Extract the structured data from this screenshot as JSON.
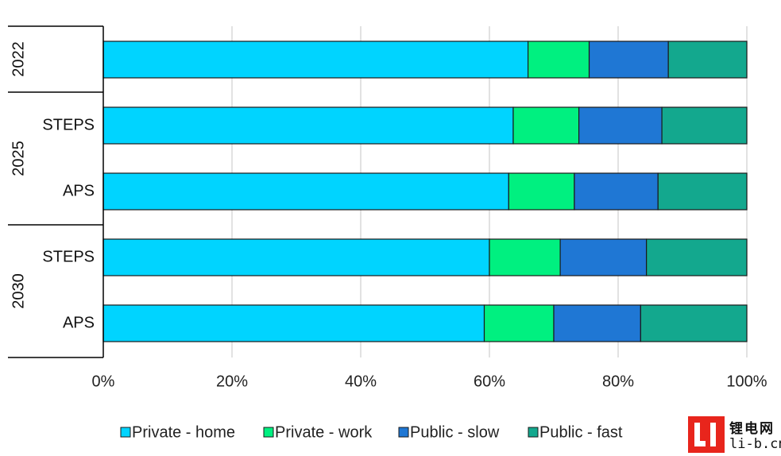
{
  "chart_data": {
    "type": "bar",
    "orientation": "horizontal",
    "stacked": true,
    "groups": [
      {
        "label": "2022",
        "rows": [
          ""
        ]
      },
      {
        "label": "2025",
        "rows": [
          "STEPS",
          "APS"
        ]
      },
      {
        "label": "2030",
        "rows": [
          "STEPS",
          "APS"
        ]
      }
    ],
    "rows": [
      {
        "group": "2022",
        "label": ""
      },
      {
        "group": "2025",
        "label": "STEPS"
      },
      {
        "group": "2025",
        "label": "APS"
      },
      {
        "group": "2030",
        "label": "STEPS"
      },
      {
        "group": "2030",
        "label": "APS"
      }
    ],
    "series": [
      {
        "name": "Private - home",
        "color": "#00d4ff",
        "values": [
          66.0,
          63.7,
          63.0,
          60.0,
          59.2
        ]
      },
      {
        "name": "Private - work",
        "color": "#00f080",
        "values": [
          9.5,
          10.2,
          10.2,
          11.0,
          10.8
        ]
      },
      {
        "name": "Public - slow",
        "color": "#1f77d4",
        "values": [
          12.3,
          12.9,
          13.0,
          13.4,
          13.5
        ]
      },
      {
        "name": "Public - fast",
        "color": "#13a88e",
        "values": [
          12.2,
          13.2,
          13.8,
          15.6,
          16.5
        ]
      }
    ],
    "x_ticks": [
      "0%",
      "20%",
      "40%",
      "60%",
      "80%",
      "100%"
    ],
    "xlim": [
      0,
      100
    ],
    "grid": true,
    "legend_position": "bottom"
  },
  "logo": {
    "mark": "LI",
    "cn": "锂电网",
    "domain": "li-b.cn"
  }
}
